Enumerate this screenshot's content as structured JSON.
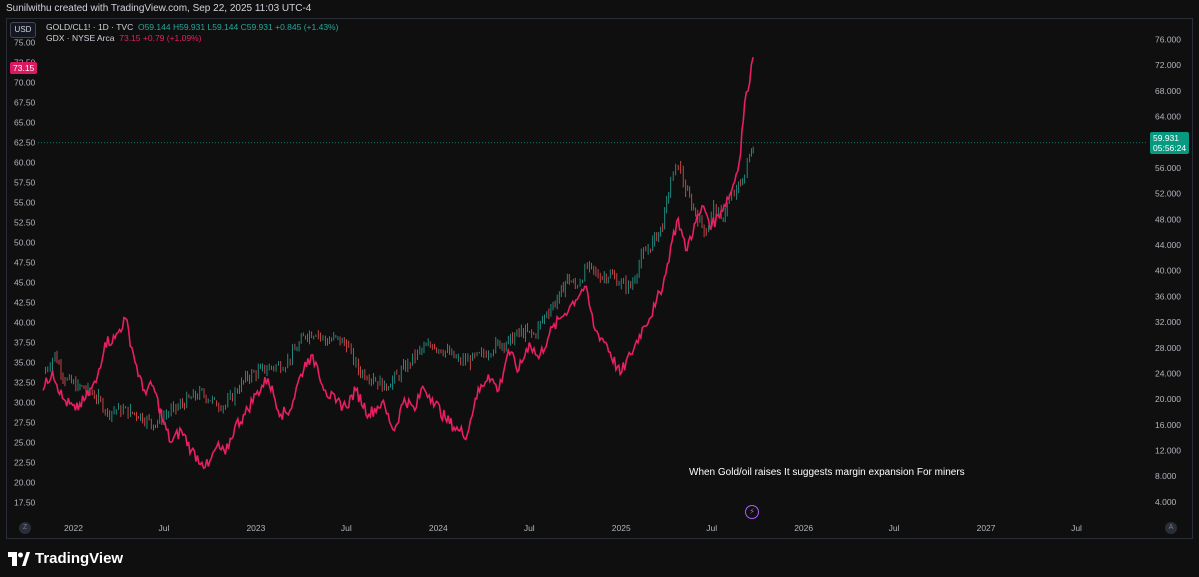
{
  "header": {
    "attribution": "Sunilwithu created with TradingView.com, Sep 22, 2025 11:03 UTC-4"
  },
  "currency": "USD",
  "legend": {
    "gold_oil": {
      "symbol": "GOLD/CL1! · 1D · TVC",
      "open": "O59.144",
      "high": "H59.931",
      "low": "L59.144",
      "close": "C59.931",
      "change": "+0.845 (+1.43%)"
    },
    "gdx": {
      "symbol": "GDX · NYSE Arca",
      "last": "73.15",
      "change": "+0.79 (+1.09%)"
    }
  },
  "badges": {
    "left_price": "73.15",
    "right_price": "59.931",
    "right_countdown": "05:56:24"
  },
  "annotation": "When Gold/oil raises It suggests margin expansion For miners",
  "axis_buttons": {
    "left": "Z",
    "right": "A"
  },
  "lightning_icon": "⚡",
  "footer": {
    "brand": "TradingView"
  },
  "colors": {
    "gdx": "#e91e63",
    "candle_up": "#26a69a",
    "candle_down": "#ef5350",
    "price_line": "#089981"
  },
  "chart_data": {
    "type": "line",
    "x_ticks": [
      "2022",
      "Jul",
      "2023",
      "Jul",
      "2024",
      "Jul",
      "2025",
      "Jul",
      "2026",
      "Jul",
      "2027",
      "Jul"
    ],
    "left_axis": {
      "ticks": [
        "75.00",
        "72.50",
        "70.00",
        "67.50",
        "65.00",
        "62.50",
        "60.00",
        "57.50",
        "55.00",
        "52.50",
        "50.00",
        "47.50",
        "45.00",
        "42.50",
        "40.00",
        "37.50",
        "35.00",
        "32.50",
        "30.00",
        "27.50",
        "25.00",
        "22.50",
        "20.00",
        "17.50"
      ],
      "range": [
        15.8,
        76.8
      ]
    },
    "right_axis": {
      "ticks": [
        "76.000",
        "72.000",
        "68.000",
        "64.000",
        "60.000",
        "56.000",
        "52.000",
        "48.000",
        "44.000",
        "40.000",
        "36.000",
        "32.000",
        "28.000",
        "24.000",
        "20.000",
        "16.000",
        "12.000",
        "8.000",
        "4.000"
      ],
      "range": [
        1.8,
        77.8
      ]
    },
    "series": [
      {
        "name": "GDX · NYSE Arca",
        "axis": "left",
        "style": "line",
        "points": [
          [
            "2021-11-01",
            31.5
          ],
          [
            "2021-11-20",
            34.0
          ],
          [
            "2021-12-10",
            30.5
          ],
          [
            "2022-01-05",
            29.0
          ],
          [
            "2022-01-25",
            30.5
          ],
          [
            "2022-02-15",
            32.5
          ],
          [
            "2022-03-05",
            37.5
          ],
          [
            "2022-03-25",
            38.0
          ],
          [
            "2022-04-15",
            40.5
          ],
          [
            "2022-05-01",
            36.0
          ],
          [
            "2022-05-20",
            31.5
          ],
          [
            "2022-06-10",
            32.0
          ],
          [
            "2022-06-30",
            27.5
          ],
          [
            "2022-07-15",
            25.0
          ],
          [
            "2022-08-05",
            26.5
          ],
          [
            "2022-08-25",
            24.0
          ],
          [
            "2022-09-15",
            22.5
          ],
          [
            "2022-09-28",
            22.0
          ],
          [
            "2022-10-15",
            24.5
          ],
          [
            "2022-11-01",
            23.5
          ],
          [
            "2022-11-20",
            27.0
          ],
          [
            "2022-12-10",
            28.5
          ],
          [
            "2023-01-01",
            31.0
          ],
          [
            "2023-01-25",
            33.0
          ],
          [
            "2023-02-20",
            28.5
          ],
          [
            "2023-03-10",
            29.0
          ],
          [
            "2023-04-01",
            33.5
          ],
          [
            "2023-04-15",
            35.5
          ],
          [
            "2023-05-01",
            35.0
          ],
          [
            "2023-05-20",
            31.5
          ],
          [
            "2023-06-10",
            30.0
          ],
          [
            "2023-06-30",
            29.5
          ],
          [
            "2023-07-20",
            31.5
          ],
          [
            "2023-08-15",
            28.5
          ],
          [
            "2023-09-10",
            30.0
          ],
          [
            "2023-10-05",
            26.5
          ],
          [
            "2023-10-25",
            30.5
          ],
          [
            "2023-11-15",
            29.0
          ],
          [
            "2023-12-01",
            32.0
          ],
          [
            "2023-12-20",
            30.5
          ],
          [
            "2024-01-15",
            28.0
          ],
          [
            "2024-02-10",
            26.5
          ],
          [
            "2024-02-28",
            26.0
          ],
          [
            "2024-03-15",
            30.5
          ],
          [
            "2024-04-10",
            33.5
          ],
          [
            "2024-05-01",
            31.5
          ],
          [
            "2024-05-20",
            36.5
          ],
          [
            "2024-06-10",
            34.0
          ],
          [
            "2024-07-01",
            37.5
          ],
          [
            "2024-07-20",
            35.5
          ],
          [
            "2024-08-10",
            38.5
          ],
          [
            "2024-09-01",
            40.5
          ],
          [
            "2024-09-20",
            42.0
          ],
          [
            "2024-10-20",
            44.5
          ],
          [
            "2024-11-10",
            39.0
          ],
          [
            "2024-12-01",
            37.5
          ],
          [
            "2024-12-30",
            33.5
          ],
          [
            "2025-01-20",
            36.0
          ],
          [
            "2025-02-15",
            39.5
          ],
          [
            "2025-03-10",
            42.0
          ],
          [
            "2025-03-31",
            46.0
          ],
          [
            "2025-04-10",
            49.5
          ],
          [
            "2025-04-25",
            53.0
          ],
          [
            "2025-05-10",
            49.0
          ],
          [
            "2025-05-30",
            52.5
          ],
          [
            "2025-06-15",
            54.5
          ],
          [
            "2025-07-01",
            52.0
          ],
          [
            "2025-07-20",
            54.0
          ],
          [
            "2025-08-10",
            56.5
          ],
          [
            "2025-08-25",
            60.0
          ],
          [
            "2025-09-05",
            67.5
          ],
          [
            "2025-09-15",
            70.0
          ],
          [
            "2025-09-22",
            73.15
          ]
        ]
      },
      {
        "name": "GOLD/CL1! · 1D · TVC",
        "axis": "right",
        "style": "candles",
        "points": [
          [
            "2021-11-01",
            24.0
          ],
          [
            "2021-11-25",
            27.0
          ],
          [
            "2021-12-15",
            23.0
          ],
          [
            "2022-01-10",
            22.0
          ],
          [
            "2022-01-30",
            21.5
          ],
          [
            "2022-02-20",
            20.0
          ],
          [
            "2022-03-10",
            18.0
          ],
          [
            "2022-04-01",
            18.5
          ],
          [
            "2022-04-25",
            18.0
          ],
          [
            "2022-05-15",
            17.5
          ],
          [
            "2022-06-10",
            16.0
          ],
          [
            "2022-07-01",
            17.5
          ],
          [
            "2022-07-25",
            18.5
          ],
          [
            "2022-08-20",
            20.0
          ],
          [
            "2022-09-15",
            21.0
          ],
          [
            "2022-10-10",
            19.5
          ],
          [
            "2022-11-01",
            19.0
          ],
          [
            "2022-11-25",
            21.5
          ],
          [
            "2022-12-15",
            23.5
          ],
          [
            "2023-01-10",
            24.5
          ],
          [
            "2023-02-01",
            25.0
          ],
          [
            "2023-03-01",
            25.5
          ],
          [
            "2023-03-20",
            27.5
          ],
          [
            "2023-04-10",
            30.0
          ],
          [
            "2023-05-01",
            30.5
          ],
          [
            "2023-05-20",
            29.0
          ],
          [
            "2023-06-10",
            29.5
          ],
          [
            "2023-07-01",
            28.5
          ],
          [
            "2023-07-25",
            24.5
          ],
          [
            "2023-08-20",
            23.5
          ],
          [
            "2023-09-15",
            22.0
          ],
          [
            "2023-10-10",
            23.5
          ],
          [
            "2023-11-01",
            25.5
          ],
          [
            "2023-11-25",
            27.5
          ],
          [
            "2023-12-20",
            28.5
          ],
          [
            "2024-01-15",
            27.5
          ],
          [
            "2024-02-10",
            26.0
          ],
          [
            "2024-03-05",
            26.0
          ],
          [
            "2024-04-01",
            27.0
          ],
          [
            "2024-04-25",
            28.5
          ],
          [
            "2024-05-20",
            29.0
          ],
          [
            "2024-06-15",
            30.5
          ],
          [
            "2024-07-10",
            30.0
          ],
          [
            "2024-08-05",
            33.5
          ],
          [
            "2024-08-30",
            36.0
          ],
          [
            "2024-09-15",
            39.0
          ],
          [
            "2024-10-01",
            37.5
          ],
          [
            "2024-10-25",
            40.5
          ],
          [
            "2024-11-20",
            39.0
          ],
          [
            "2024-12-10",
            39.5
          ],
          [
            "2025-01-01",
            38.0
          ],
          [
            "2025-01-20",
            37.5
          ],
          [
            "2025-02-10",
            42.0
          ],
          [
            "2025-03-05",
            44.5
          ],
          [
            "2025-03-25",
            47.0
          ],
          [
            "2025-04-10",
            54.0
          ],
          [
            "2025-04-25",
            56.5
          ],
          [
            "2025-05-10",
            52.5
          ],
          [
            "2025-05-30",
            49.0
          ],
          [
            "2025-06-20",
            46.0
          ],
          [
            "2025-07-05",
            50.0
          ],
          [
            "2025-07-20",
            48.0
          ],
          [
            "2025-08-05",
            51.0
          ],
          [
            "2025-08-20",
            52.5
          ],
          [
            "2025-09-05",
            55.0
          ],
          [
            "2025-09-15",
            58.0
          ],
          [
            "2025-09-22",
            59.931
          ]
        ]
      }
    ],
    "annotation": "When Gold/oil raises It suggests margin expansion For miners"
  }
}
